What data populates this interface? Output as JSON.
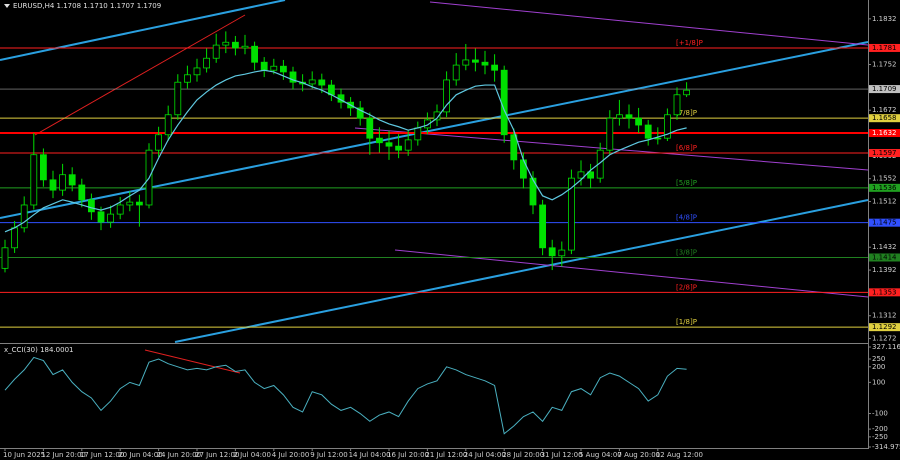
{
  "chart_data": [
    {
      "type": "candlestick",
      "title": "EURUSD,H4 1.1708 1.1710 1.1707 1.1709",
      "categories": [
        "10 Jun 2025",
        null,
        null,
        null,
        "12 Jun 20:00",
        null,
        null,
        null,
        "17 Jun 12:00",
        null,
        null,
        null,
        "20 Jun 04:00",
        null,
        null,
        null,
        "24 Jun 20:00",
        null,
        null,
        null,
        "27 Jun 12:00",
        null,
        null,
        null,
        "2 Jul 04:00",
        null,
        null,
        null,
        "4 Jul 20:00",
        null,
        null,
        null,
        "9 Jul 12:00",
        null,
        null,
        null,
        "14 Jul 04:00",
        null,
        null,
        null,
        "16 Jul 20:00",
        null,
        null,
        null,
        "21 Jul 12:00",
        null,
        null,
        null,
        "24 Jul 04:00",
        null,
        null,
        null,
        "28 Jul 20:00",
        null,
        null,
        null,
        "31 Jul 12:00",
        null,
        null,
        null,
        "5 Aug 04:00",
        null,
        null,
        null,
        "7 Aug 20:00",
        null,
        null,
        null,
        "12 Aug 12:00",
        null,
        null,
        null
      ],
      "open": [
        1.1395,
        1.1431,
        1.1466,
        1.1506,
        1.1594,
        1.155,
        1.1532,
        1.1559,
        1.1541,
        1.1515,
        1.1494,
        1.1476,
        1.149,
        1.1506,
        1.1511,
        1.1506,
        1.1602,
        1.1629,
        1.1664,
        1.1721,
        1.1734,
        1.1746,
        1.1763,
        1.1786,
        1.1791,
        1.1781,
        1.1784,
        1.1756,
        1.1742,
        1.1749,
        1.1739,
        1.1721,
        1.1718,
        1.1725,
        1.1716,
        1.1699,
        1.1686,
        1.1676,
        1.1658,
        1.1623,
        1.1615,
        1.1609,
        1.1602,
        1.162,
        1.1641,
        1.1655,
        1.1669,
        1.1725,
        1.1751,
        1.176,
        1.1756,
        1.1751,
        1.1742,
        1.1629,
        1.1585,
        1.1553,
        1.1506,
        1.1431,
        1.1417,
        1.1427,
        1.1553,
        1.1564,
        1.1553,
        1.1602,
        1.1658,
        1.1664,
        1.1658,
        1.1646,
        1.1623,
        1.1623,
        1.1664,
        1.1699
      ],
      "high": [
        1.1445,
        1.1478,
        1.1521,
        1.1632,
        1.1605,
        1.1566,
        1.1578,
        1.1572,
        1.1552,
        1.1526,
        1.1503,
        1.1505,
        1.152,
        1.153,
        1.1524,
        1.1614,
        1.1643,
        1.168,
        1.1735,
        1.175,
        1.1762,
        1.178,
        1.1806,
        1.181,
        1.1802,
        1.1804,
        1.1792,
        1.1765,
        1.1762,
        1.176,
        1.1748,
        1.1735,
        1.174,
        1.1736,
        1.1725,
        1.171,
        1.1695,
        1.1688,
        1.1668,
        1.1642,
        1.1636,
        1.163,
        1.1638,
        1.1652,
        1.1668,
        1.1682,
        1.174,
        1.1772,
        1.1788,
        1.178,
        1.1776,
        1.177,
        1.175,
        1.164,
        1.1598,
        1.1565,
        1.1515,
        1.1445,
        1.1442,
        1.1568,
        1.1584,
        1.1578,
        1.1615,
        1.1672,
        1.169,
        1.1682,
        1.1676,
        1.1655,
        1.1642,
        1.1675,
        1.1712,
        1.1721
      ],
      "low": [
        1.1388,
        1.1422,
        1.1458,
        1.1498,
        1.1538,
        1.1518,
        1.1522,
        1.153,
        1.1502,
        1.148,
        1.1462,
        1.1466,
        1.1481,
        1.1495,
        1.1468,
        1.15,
        1.159,
        1.1618,
        1.1655,
        1.171,
        1.1722,
        1.1738,
        1.1755,
        1.1772,
        1.1768,
        1.177,
        1.1742,
        1.173,
        1.1735,
        1.1725,
        1.1708,
        1.1705,
        1.171,
        1.1702,
        1.1688,
        1.1675,
        1.1662,
        1.1645,
        1.1594,
        1.1598,
        1.1585,
        1.1588,
        1.1592,
        1.161,
        1.163,
        1.1644,
        1.166,
        1.1715,
        1.1742,
        1.174,
        1.1735,
        1.1722,
        1.1615,
        1.1568,
        1.1535,
        1.149,
        1.1418,
        1.1392,
        1.1398,
        1.142,
        1.154,
        1.1535,
        1.1545,
        1.1595,
        1.1645,
        1.164,
        1.1632,
        1.161,
        1.1612,
        1.1618,
        1.1655,
        1.1695
      ],
      "close": [
        1.1431,
        1.1466,
        1.1506,
        1.1594,
        1.155,
        1.1532,
        1.1559,
        1.1541,
        1.1515,
        1.1494,
        1.1476,
        1.149,
        1.1506,
        1.1511,
        1.1506,
        1.1602,
        1.1629,
        1.1664,
        1.1721,
        1.1734,
        1.1746,
        1.1763,
        1.1786,
        1.1791,
        1.1781,
        1.1784,
        1.1756,
        1.1742,
        1.1749,
        1.1739,
        1.1721,
        1.1718,
        1.1725,
        1.1716,
        1.1699,
        1.1686,
        1.1676,
        1.1658,
        1.1623,
        1.1615,
        1.1609,
        1.1602,
        1.162,
        1.1641,
        1.1655,
        1.1669,
        1.1725,
        1.1751,
        1.176,
        1.1756,
        1.1751,
        1.1742,
        1.1629,
        1.1585,
        1.1553,
        1.1506,
        1.1431,
        1.1417,
        1.1427,
        1.1553,
        1.1564,
        1.1553,
        1.1602,
        1.1658,
        1.1664,
        1.1658,
        1.1646,
        1.1623,
        1.1623,
        1.1664,
        1.1699,
        1.1707
      ],
      "color": "#00e000",
      "ma_values": [
        1.1459,
        1.1466,
        1.1476,
        1.1489,
        1.1501,
        1.1508,
        1.1515,
        1.1511,
        1.1506,
        1.1501,
        1.1497,
        1.1502,
        1.1511,
        1.1522,
        1.1532,
        1.1553,
        1.1588,
        1.162,
        1.1646,
        1.1669,
        1.169,
        1.1704,
        1.1716,
        1.1725,
        1.1732,
        1.1735,
        1.1739,
        1.1742,
        1.1739,
        1.1732,
        1.1725,
        1.172,
        1.1713,
        1.1707,
        1.1699,
        1.169,
        1.1681,
        1.1672,
        1.1664,
        1.1655,
        1.1648,
        1.1643,
        1.1637,
        1.1641,
        1.1646,
        1.1658,
        1.1681,
        1.1699,
        1.1707,
        1.1714,
        1.1716,
        1.1716,
        1.1672,
        1.1637,
        1.1585,
        1.155,
        1.1522,
        1.1515,
        1.1524,
        1.1536,
        1.155,
        1.1567,
        1.158,
        1.1594,
        1.1602,
        1.1609,
        1.1616,
        1.162,
        1.1625,
        1.163,
        1.1637,
        1.1641
      ],
      "ma_color": "#5fc8e0",
      "ylim": [
        1.1266,
        1.1865
      ],
      "yticks": [
        1.1832,
        1.1752,
        1.1672,
        1.1592,
        1.1552,
        1.1512,
        1.1432,
        1.1392,
        1.1312,
        1.1272
      ],
      "levels": [
        {
          "label": "[+1/8]P",
          "value": 1.1781,
          "color": "#ff2020"
        },
        {
          "label": "[7/8]P",
          "value": 1.1658,
          "color": "#e0d040"
        },
        {
          "label": "[6/8]P",
          "value": 1.1597,
          "color": "#ff2020"
        },
        {
          "label": "[5/8]P",
          "value": 1.1536,
          "color": "#20a020"
        },
        {
          "label": "[4/8]P",
          "value": 1.1475,
          "color": "#3050ff"
        },
        {
          "label": "[3/8]P",
          "value": 1.1414,
          "color": "#208020"
        },
        {
          "label": "[2/8]P",
          "value": 1.1353,
          "color": "#ff2020"
        },
        {
          "label": "[1/8]P",
          "value": 1.1292,
          "color": "#e0d040"
        }
      ],
      "lines": [
        {
          "value": 1.1632,
          "color": "#ff0000"
        }
      ],
      "last_price": 1.1709
    },
    {
      "type": "line",
      "title": "x_CCI(30) 184.0001",
      "values": [
        50,
        120,
        180,
        260,
        240,
        150,
        180,
        100,
        40,
        0,
        -80,
        -20,
        60,
        100,
        80,
        230,
        250,
        220,
        200,
        180,
        190,
        180,
        200,
        210,
        170,
        180,
        100,
        60,
        80,
        20,
        -60,
        -90,
        40,
        20,
        -40,
        -80,
        -60,
        -100,
        -150,
        -110,
        -90,
        -120,
        -20,
        60,
        90,
        110,
        200,
        180,
        150,
        130,
        110,
        80,
        -230,
        -180,
        -120,
        -90,
        -150,
        -60,
        -80,
        40,
        60,
        20,
        130,
        160,
        140,
        100,
        60,
        -20,
        20,
        140,
        190,
        184
      ],
      "color": "#4ab0c0",
      "ylim": [
        -314.975,
        327.116
      ],
      "yticks": [
        327.116,
        250,
        200,
        100,
        -100,
        -200,
        -250,
        -314.975
      ]
    }
  ]
}
